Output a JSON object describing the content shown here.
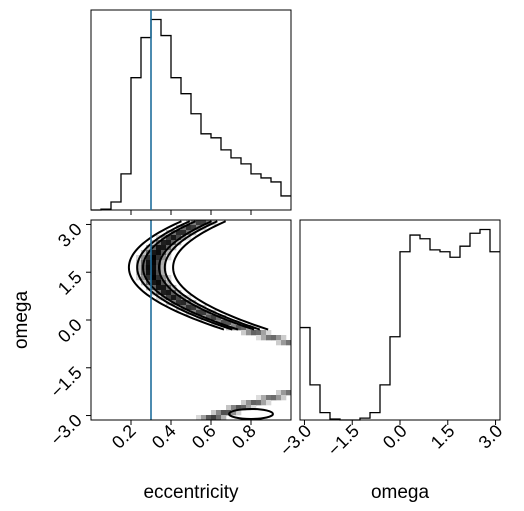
{
  "chart_data": [
    {
      "panel": "eccentricity-marginal",
      "type": "histogram",
      "xlim": [
        0.0,
        1.0
      ],
      "truth_value": 0.3,
      "bin_edges": [
        0.0,
        0.05,
        0.1,
        0.15,
        0.2,
        0.25,
        0.3,
        0.35,
        0.4,
        0.45,
        0.5,
        0.55,
        0.6,
        0.65,
        0.7,
        0.75,
        0.8,
        0.85,
        0.9,
        0.95,
        1.0
      ],
      "values": [
        0.0,
        0.004,
        0.04,
        0.18,
        0.66,
        0.86,
        0.95,
        0.87,
        0.66,
        0.58,
        0.48,
        0.38,
        0.36,
        0.3,
        0.26,
        0.23,
        0.18,
        0.16,
        0.14,
        0.07
      ]
    },
    {
      "panel": "eccentricity-vs-omega",
      "type": "heatmap",
      "xlabel": "eccentricity",
      "ylabel": "omega",
      "xlim": [
        0.0,
        1.0
      ],
      "ylim": [
        -3.14,
        3.14
      ],
      "x_ticks": [
        "0.2",
        "0.4",
        "0.6",
        "0.8"
      ],
      "y_ticks": [
        "3.0",
        "1.5",
        "0.0",
        "−1.5",
        "−3.0"
      ],
      "truth_value": 0.3
    },
    {
      "panel": "omega-marginal",
      "type": "histogram",
      "xlabel": "omega",
      "xlim": [
        -3.14,
        3.14
      ],
      "x_ticks": [
        "−3.0",
        "−1.5",
        "0.0",
        "1.5",
        "3.0"
      ],
      "bin_edges": [
        -3.14,
        -2.826,
        -2.512,
        -2.198,
        -1.884,
        -1.57,
        -1.256,
        -0.942,
        -0.628,
        -0.314,
        0.0,
        0.314,
        0.628,
        0.942,
        1.256,
        1.57,
        1.884,
        2.198,
        2.512,
        2.826,
        3.14
      ],
      "values": [
        0.5,
        0.19,
        0.04,
        0.005,
        0.0,
        0.0,
        0.01,
        0.04,
        0.19,
        0.45,
        0.91,
        1.0,
        0.98,
        0.92,
        0.91,
        0.88,
        0.94,
        1.01,
        1.03,
        0.91
      ]
    }
  ]
}
